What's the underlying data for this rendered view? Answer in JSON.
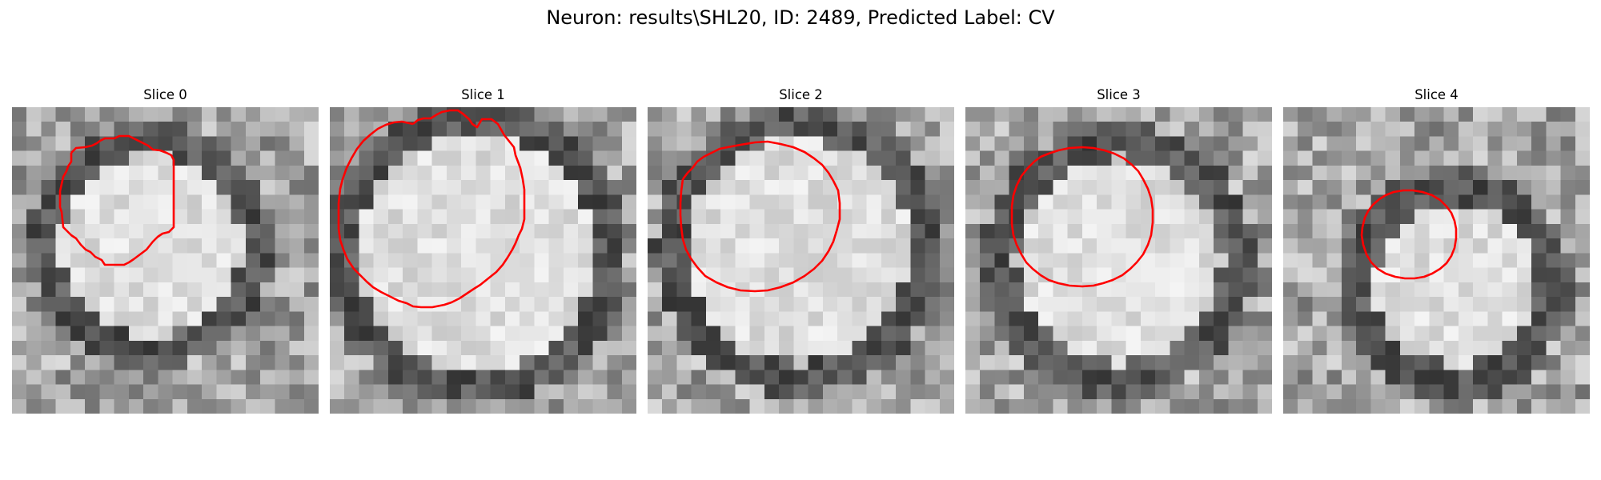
{
  "figure": {
    "suptitle": "Neuron: results\\SHL20, ID: 2489, Predicted Label: CV"
  },
  "panels": [
    {
      "title": "Slice 0"
    },
    {
      "title": "Slice 1"
    },
    {
      "title": "Slice 2"
    },
    {
      "title": "Slice 3"
    },
    {
      "title": "Slice 4"
    }
  ],
  "colors": {
    "contour": "#ff0000",
    "background": "#ffffff"
  }
}
